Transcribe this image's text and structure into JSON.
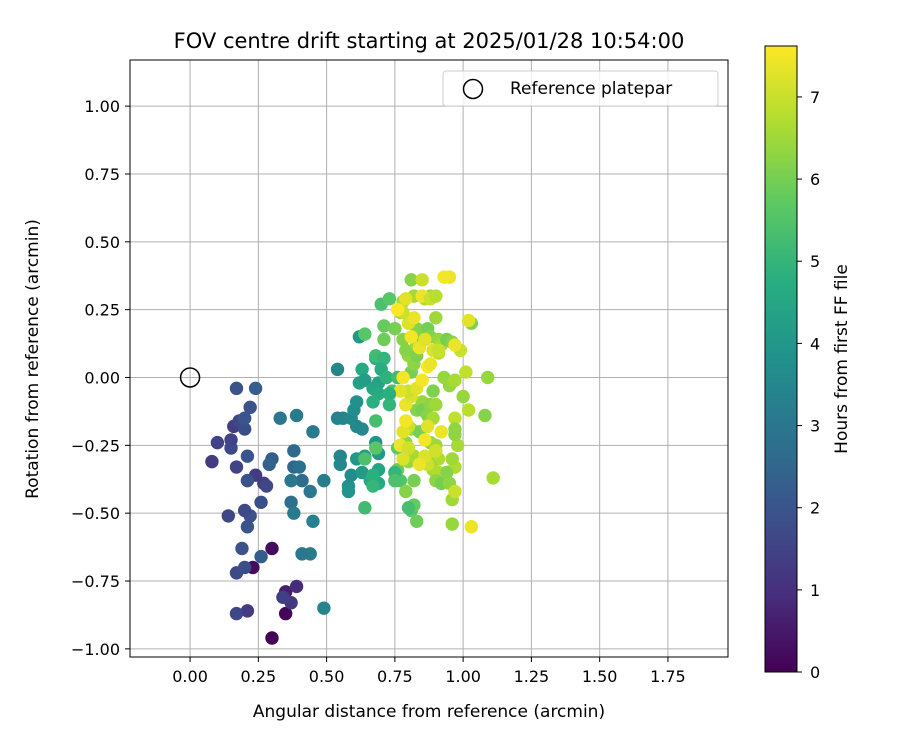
{
  "chart_data": {
    "type": "scatter",
    "title": "FOV centre drift starting at 2025/01/28 10:54:00",
    "xlabel": "Angular distance from reference (arcmin)",
    "ylabel": "Rotation from reference (arcmin)",
    "xlim": [
      -0.22,
      1.97
    ],
    "ylim": [
      -1.03,
      1.17
    ],
    "xticks": [
      0.0,
      0.25,
      0.5,
      0.75,
      1.0,
      1.25,
      1.5,
      1.75
    ],
    "xtick_labels": [
      "0.00",
      "0.25",
      "0.50",
      "0.75",
      "1.00",
      "1.25",
      "1.50",
      "1.75"
    ],
    "yticks": [
      -1.0,
      -0.75,
      -0.5,
      -0.25,
      0.0,
      0.25,
      0.5,
      0.75,
      1.0
    ],
    "ytick_labels": [
      "−1.00",
      "−0.75",
      "−0.50",
      "−0.25",
      "0.00",
      "0.25",
      "0.50",
      "0.75",
      "1.00"
    ],
    "grid": true,
    "legend": {
      "position": "top-right",
      "entries": [
        "Reference platepar"
      ]
    },
    "reference_point": {
      "x": 0.0,
      "y": 0.0,
      "label": "Reference platepar"
    },
    "colorbar": {
      "label": "Hours from first FF file",
      "colormap": "viridis",
      "min": 0,
      "max": 7.62,
      "ticks": [
        0,
        1,
        2,
        3,
        4,
        5,
        6,
        7
      ],
      "tick_labels": [
        "0",
        "1",
        "2",
        "3",
        "4",
        "5",
        "6",
        "7"
      ]
    },
    "points": [
      [
        0.3,
        -0.96,
        0.05
      ],
      [
        0.35,
        -0.87,
        0.1
      ],
      [
        0.23,
        -0.7,
        0.2
      ],
      [
        0.3,
        -0.63,
        0.25
      ],
      [
        0.35,
        -0.79,
        0.6
      ],
      [
        0.39,
        -0.77,
        0.9
      ],
      [
        0.37,
        -0.83,
        1.2
      ],
      [
        0.34,
        -0.81,
        1.4
      ],
      [
        0.21,
        -0.86,
        1.3
      ],
      [
        0.17,
        -0.87,
        1.6
      ],
      [
        0.17,
        -0.72,
        1.7
      ],
      [
        0.2,
        -0.7,
        1.8
      ],
      [
        0.19,
        -0.63,
        1.9
      ],
      [
        0.26,
        -0.66,
        2.2
      ],
      [
        0.21,
        -0.55,
        2.0
      ],
      [
        0.22,
        -0.51,
        1.9
      ],
      [
        0.2,
        -0.49,
        1.7
      ],
      [
        0.14,
        -0.51,
        1.6
      ],
      [
        0.26,
        -0.46,
        1.8
      ],
      [
        0.27,
        -0.39,
        1.4
      ],
      [
        0.28,
        -0.4,
        1.6
      ],
      [
        0.24,
        -0.36,
        1.3
      ],
      [
        0.21,
        -0.38,
        1.9
      ],
      [
        0.21,
        -0.29,
        2.0
      ],
      [
        0.17,
        -0.33,
        1.5
      ],
      [
        0.08,
        -0.31,
        1.3
      ],
      [
        0.1,
        -0.24,
        1.5
      ],
      [
        0.15,
        -0.26,
        1.7
      ],
      [
        0.15,
        -0.23,
        1.5
      ],
      [
        0.16,
        -0.18,
        1.4
      ],
      [
        0.18,
        -0.16,
        1.6
      ],
      [
        0.2,
        -0.19,
        1.8
      ],
      [
        0.2,
        -0.15,
        2.0
      ],
      [
        0.22,
        -0.11,
        1.9
      ],
      [
        0.17,
        -0.04,
        1.9
      ],
      [
        0.24,
        -0.04,
        2.3
      ],
      [
        0.3,
        -0.3,
        2.2
      ],
      [
        0.29,
        -0.32,
        2.4
      ],
      [
        0.33,
        -0.15,
        3.0
      ],
      [
        0.39,
        -0.14,
        3.1
      ],
      [
        0.38,
        -0.27,
        2.6
      ],
      [
        0.38,
        -0.33,
        2.5
      ],
      [
        0.4,
        -0.33,
        2.8
      ],
      [
        0.41,
        -0.38,
        2.7
      ],
      [
        0.37,
        -0.38,
        3.0
      ],
      [
        0.37,
        -0.46,
        2.8
      ],
      [
        0.38,
        -0.5,
        3.1
      ],
      [
        0.44,
        -0.42,
        3.0
      ],
      [
        0.45,
        -0.2,
        3.1
      ],
      [
        0.45,
        -0.53,
        3.3
      ],
      [
        0.44,
        -0.65,
        3.1
      ],
      [
        0.41,
        -0.65,
        3.0
      ],
      [
        0.49,
        -0.85,
        3.4
      ],
      [
        0.49,
        -0.38,
        3.2
      ],
      [
        0.55,
        -0.29,
        3.4
      ],
      [
        0.55,
        -0.32,
        3.5
      ],
      [
        0.54,
        -0.15,
        3.3
      ],
      [
        0.56,
        -0.15,
        3.4
      ],
      [
        0.59,
        -0.15,
        3.6
      ],
      [
        0.6,
        -0.12,
        3.7
      ],
      [
        0.61,
        -0.09,
        3.8
      ],
      [
        0.61,
        -0.18,
        3.6
      ],
      [
        0.63,
        -0.19,
        3.5
      ],
      [
        0.58,
        -0.4,
        3.8
      ],
      [
        0.59,
        -0.36,
        3.7
      ],
      [
        0.58,
        -0.42,
        3.9
      ],
      [
        0.61,
        -0.3,
        4.0
      ],
      [
        0.63,
        -0.35,
        4.1
      ],
      [
        0.64,
        -0.29,
        4.2
      ],
      [
        0.68,
        -0.24,
        3.9
      ],
      [
        0.69,
        -0.28,
        4.1
      ],
      [
        0.66,
        -0.38,
        4.5
      ],
      [
        0.69,
        -0.34,
        4.4
      ],
      [
        0.69,
        -0.39,
        4.6
      ],
      [
        0.67,
        -0.36,
        4.8
      ],
      [
        0.67,
        -0.4,
        5.0
      ],
      [
        0.64,
        -0.48,
        5.2
      ],
      [
        0.54,
        0.03,
        3.5
      ],
      [
        0.62,
        0.15,
        4.0
      ],
      [
        0.63,
        0.03,
        4.6
      ],
      [
        0.62,
        -0.02,
        4.3
      ],
      [
        0.64,
        -0.01,
        4.2
      ],
      [
        0.67,
        -0.04,
        4.5
      ],
      [
        0.69,
        -0.02,
        4.4
      ],
      [
        0.68,
        0.07,
        4.8
      ],
      [
        0.68,
        0.08,
        5.2
      ],
      [
        0.71,
        0.07,
        5.0
      ],
      [
        0.7,
        0.03,
        4.7
      ],
      [
        0.72,
        0.0,
        4.9
      ],
      [
        0.69,
        -0.06,
        4.6
      ],
      [
        0.67,
        -0.09,
        4.8
      ],
      [
        0.68,
        -0.16,
        5.3
      ],
      [
        0.68,
        -0.26,
        5.6
      ],
      [
        0.64,
        -0.3,
        5.4
      ],
      [
        0.64,
        0.16,
        5.6
      ],
      [
        0.71,
        0.14,
        5.9
      ],
      [
        0.7,
        0.27,
        5.4
      ],
      [
        0.73,
        0.29,
        5.6
      ],
      [
        0.71,
        0.19,
        5.8
      ],
      [
        0.74,
        -0.05,
        5.4
      ],
      [
        0.76,
        0.0,
        5.2
      ],
      [
        0.77,
        -0.38,
        5.5
      ],
      [
        0.76,
        -0.26,
        5.7
      ],
      [
        0.76,
        -0.34,
        5.9
      ],
      [
        0.78,
        0.14,
        6.2
      ],
      [
        0.75,
        0.18,
        6.0
      ],
      [
        0.77,
        0.24,
        6.4
      ],
      [
        0.78,
        0.28,
        6.6
      ],
      [
        0.8,
        0.08,
        6.4
      ],
      [
        0.79,
        0.1,
        6.2
      ],
      [
        0.81,
        0.02,
        6.0
      ],
      [
        0.82,
        0.05,
        6.3
      ],
      [
        0.83,
        0.08,
        6.1
      ],
      [
        0.83,
        0.12,
        6.5
      ],
      [
        0.84,
        0.16,
        6.0
      ],
      [
        0.83,
        0.18,
        6.2
      ],
      [
        0.81,
        0.36,
        6.2
      ],
      [
        0.82,
        0.3,
        6.6
      ],
      [
        0.85,
        0.36,
        7.0
      ],
      [
        0.86,
        0.29,
        6.7
      ],
      [
        0.88,
        0.3,
        6.5
      ],
      [
        0.87,
        0.18,
        6.0
      ],
      [
        0.88,
        0.15,
        6.2
      ],
      [
        0.91,
        0.14,
        6.4
      ],
      [
        0.9,
        0.22,
        6.5
      ],
      [
        0.92,
        0.12,
        6.6
      ],
      [
        0.91,
        0.09,
        6.8
      ],
      [
        0.93,
        0.0,
        6.4
      ],
      [
        0.94,
        0.14,
        6.0
      ],
      [
        0.96,
        0.13,
        6.2
      ],
      [
        0.95,
        -0.03,
        6.4
      ],
      [
        0.97,
        -0.01,
        6.6
      ],
      [
        0.99,
        0.1,
        7.0
      ],
      [
        1.0,
        -0.07,
        6.4
      ],
      [
        1.02,
        -0.12,
        6.8
      ],
      [
        1.01,
        0.02,
        6.9
      ],
      [
        1.03,
        0.2,
        6.1
      ],
      [
        1.09,
        0.0,
        6.4
      ],
      [
        1.08,
        -0.14,
        6.2
      ],
      [
        1.11,
        -0.37,
        6.6
      ],
      [
        0.97,
        0.12,
        7.4
      ],
      [
        1.02,
        0.21,
        7.3
      ],
      [
        0.95,
        0.37,
        7.4
      ],
      [
        0.93,
        0.37,
        7.5
      ],
      [
        0.81,
        -0.49,
        5.6
      ],
      [
        0.82,
        -0.47,
        5.8
      ],
      [
        0.83,
        -0.53,
        5.9
      ],
      [
        0.82,
        -0.38,
        6.0
      ],
      [
        0.79,
        -0.42,
        6.2
      ],
      [
        0.8,
        -0.31,
        6.4
      ],
      [
        0.82,
        -0.29,
        6.6
      ],
      [
        0.79,
        -0.24,
        6.3
      ],
      [
        0.81,
        -0.19,
        6.5
      ],
      [
        0.84,
        -0.2,
        6.0
      ],
      [
        0.83,
        -0.12,
        6.2
      ],
      [
        0.85,
        -0.09,
        6.4
      ],
      [
        0.85,
        -0.12,
        6.0
      ],
      [
        0.87,
        -0.14,
        6.2
      ],
      [
        0.88,
        -0.1,
        6.3
      ],
      [
        0.9,
        -0.1,
        6.5
      ],
      [
        0.89,
        -0.15,
        6.6
      ],
      [
        0.88,
        -0.24,
        6.3
      ],
      [
        0.9,
        -0.25,
        6.5
      ],
      [
        0.91,
        -0.3,
        6.7
      ],
      [
        0.88,
        -0.3,
        6.8
      ],
      [
        0.88,
        -0.32,
        6.5
      ],
      [
        0.89,
        -0.34,
        6.6
      ],
      [
        0.91,
        -0.35,
        6.7
      ],
      [
        0.9,
        -0.38,
        6.3
      ],
      [
        0.92,
        -0.39,
        6.0
      ],
      [
        0.95,
        -0.39,
        6.3
      ],
      [
        0.96,
        -0.45,
        6.5
      ],
      [
        0.97,
        -0.33,
        6.7
      ],
      [
        0.96,
        -0.3,
        6.5
      ],
      [
        0.98,
        -0.25,
        6.6
      ],
      [
        0.97,
        -0.21,
        6.3
      ],
      [
        0.97,
        -0.42,
        7.0
      ],
      [
        0.96,
        -0.54,
        6.4
      ],
      [
        1.03,
        -0.55,
        7.4
      ],
      [
        0.94,
        -0.35,
        7.5
      ],
      [
        0.87,
        -0.32,
        7.0
      ],
      [
        0.86,
        -0.29,
        7.2
      ],
      [
        0.84,
        -0.32,
        7.4
      ],
      [
        0.9,
        -0.27,
        7.1
      ],
      [
        0.92,
        -0.2,
        7.4
      ],
      [
        0.87,
        -0.18,
        7.3
      ],
      [
        0.86,
        -0.23,
        7.5
      ],
      [
        0.8,
        -0.18,
        7.0
      ],
      [
        0.78,
        -0.2,
        7.3
      ],
      [
        0.79,
        -0.16,
        7.5
      ],
      [
        0.77,
        -0.25,
        7.4
      ],
      [
        0.78,
        -0.3,
        7.2
      ],
      [
        0.8,
        -0.26,
        7.1
      ],
      [
        0.79,
        -0.1,
        7.4
      ],
      [
        0.81,
        -0.07,
        7.2
      ],
      [
        0.8,
        -0.05,
        7.0
      ],
      [
        0.77,
        -0.05,
        7.3
      ],
      [
        0.78,
        0.0,
        7.5
      ],
      [
        0.83,
        -0.04,
        7.3
      ],
      [
        0.85,
        -0.01,
        7.5
      ],
      [
        0.87,
        0.04,
        7.6
      ],
      [
        0.88,
        0.05,
        7.4
      ],
      [
        0.89,
        0.1,
        7.2
      ],
      [
        0.91,
        0.1,
        7.0
      ],
      [
        0.84,
        0.11,
        7.4
      ],
      [
        0.86,
        0.14,
        7.3
      ],
      [
        0.81,
        0.15,
        7.5
      ],
      [
        0.8,
        0.2,
        7.2
      ],
      [
        0.82,
        0.22,
        7.4
      ],
      [
        0.78,
        0.24,
        7.0
      ],
      [
        0.76,
        0.25,
        7.6
      ],
      [
        0.79,
        0.29,
        7.3
      ],
      [
        0.85,
        0.3,
        7.4
      ],
      [
        0.88,
        0.29,
        7.0
      ],
      [
        0.9,
        0.3,
        6.8
      ],
      [
        0.97,
        -0.15,
        6.9
      ],
      [
        0.97,
        -0.19,
        6.3
      ],
      [
        0.94,
        -0.35,
        6.2
      ],
      [
        0.89,
        -0.05,
        6.1
      ],
      [
        0.8,
        -0.48,
        5.3
      ],
      [
        0.75,
        -0.35,
        5.0
      ],
      [
        0.75,
        -0.38,
        5.4
      ],
      [
        0.73,
        -0.1,
        5.0
      ],
      [
        0.73,
        -0.06,
        4.8
      ]
    ]
  }
}
